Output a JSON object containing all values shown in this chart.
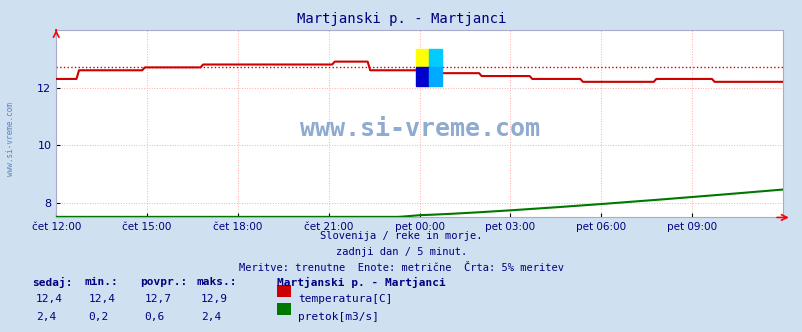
{
  "title": "Martjanski p. - Martjanci",
  "title_color": "#000080",
  "bg_color": "#cfe0f0",
  "plot_bg_color": "#ffffff",
  "grid_color": "#ffaaaa",
  "grid_linestyle": ":",
  "xlabel_ticks": [
    "čet 12:00",
    "čet 15:00",
    "čet 18:00",
    "čet 21:00",
    "pet 00:00",
    "pet 03:00",
    "pet 06:00",
    "pet 09:00"
  ],
  "tick_positions": [
    0.0,
    0.125,
    0.25,
    0.375,
    0.5,
    0.625,
    0.75,
    0.875
  ],
  "ylim_temp": [
    7.5,
    14.0
  ],
  "yticks": [
    8,
    10,
    12
  ],
  "temp_color": "#cc0000",
  "flow_color": "#007700",
  "avg_line_color": "#cc0000",
  "watermark_text": "www.si-vreme.com",
  "watermark_color": "#3366aa",
  "footer_line1": "Slovenija / reke in morje.",
  "footer_line2": "zadnji dan / 5 minut.",
  "footer_line3": "Meritve: trenutne  Enote: metrične  Črta: 5% meritev",
  "footer_color": "#000080",
  "legend_title": "Martjanski p. - Martjanci",
  "legend_color": "#000080",
  "table_header": [
    "sedaj:",
    "min.:",
    "povpr.:",
    "maks.:"
  ],
  "table_temp": [
    "12,4",
    "12,4",
    "12,7",
    "12,9"
  ],
  "table_flow": [
    "2,4",
    "0,2",
    "0,6",
    "2,4"
  ],
  "temp_avg": 12.7,
  "n_points": 288
}
